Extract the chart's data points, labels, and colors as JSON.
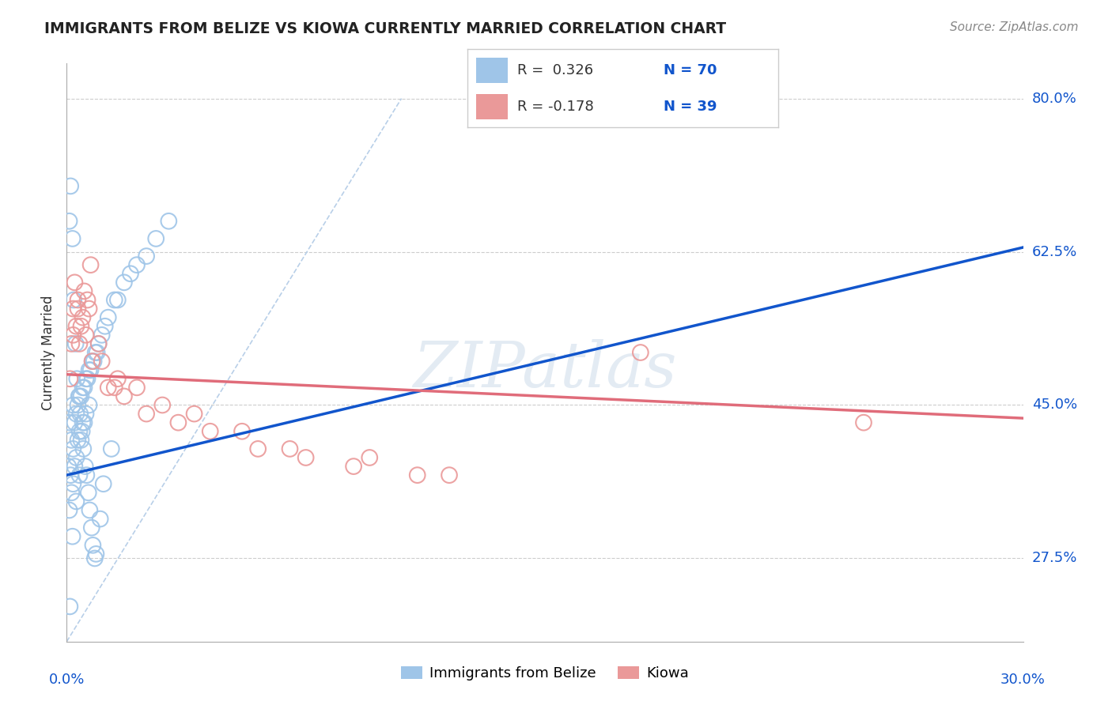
{
  "title": "IMMIGRANTS FROM BELIZE VS KIOWA CURRENTLY MARRIED CORRELATION CHART",
  "source_text": "Source: ZipAtlas.com",
  "ylabel": "Currently Married",
  "yticks": [
    27.5,
    45.0,
    62.5,
    80.0
  ],
  "ytick_labels": [
    "27.5%",
    "45.0%",
    "62.5%",
    "80.0%"
  ],
  "xmin": 0.0,
  "xmax": 30.0,
  "ymin": 18.0,
  "ymax": 84.0,
  "blue_color": "#9fc5e8",
  "pink_color": "#ea9999",
  "blue_line_color": "#1155cc",
  "pink_line_color": "#e06c7a",
  "ref_line_color": "#b8cfe8",
  "watermark_color": "#c8d8e8",
  "watermark_text": "ZIPatlas",
  "label_blue": "Immigrants from Belize",
  "label_pink": "Kiowa",
  "blue_x": [
    0.05,
    0.08,
    0.1,
    0.1,
    0.12,
    0.15,
    0.15,
    0.18,
    0.2,
    0.2,
    0.2,
    0.25,
    0.25,
    0.3,
    0.3,
    0.3,
    0.35,
    0.35,
    0.4,
    0.4,
    0.4,
    0.45,
    0.45,
    0.5,
    0.5,
    0.55,
    0.55,
    0.6,
    0.6,
    0.65,
    0.7,
    0.7,
    0.75,
    0.8,
    0.85,
    0.9,
    0.95,
    1.0,
    1.1,
    1.2,
    1.3,
    1.5,
    1.6,
    1.8,
    2.0,
    2.2,
    2.5,
    2.8,
    3.2,
    0.08,
    0.12,
    0.18,
    0.22,
    0.28,
    0.32,
    0.38,
    0.42,
    0.48,
    0.52,
    0.58,
    0.62,
    0.68,
    0.72,
    0.78,
    0.82,
    0.88,
    0.92,
    1.05,
    1.15,
    1.4
  ],
  "blue_y": [
    38.0,
    33.0,
    22.0,
    43.0,
    37.0,
    35.0,
    41.0,
    30.0,
    45.0,
    40.0,
    36.0,
    43.0,
    38.0,
    44.0,
    39.0,
    34.0,
    45.0,
    41.0,
    46.0,
    42.0,
    37.0,
    46.0,
    41.0,
    47.0,
    43.0,
    47.0,
    43.0,
    48.0,
    44.0,
    48.0,
    49.0,
    45.0,
    49.0,
    50.0,
    50.0,
    51.0,
    51.0,
    52.0,
    53.0,
    54.0,
    55.0,
    57.0,
    57.0,
    59.0,
    60.0,
    61.0,
    62.0,
    64.0,
    66.0,
    66.0,
    70.0,
    64.0,
    57.0,
    52.0,
    48.0,
    46.0,
    44.0,
    42.0,
    40.0,
    38.0,
    37.0,
    35.0,
    33.0,
    31.0,
    29.0,
    27.5,
    28.0,
    32.0,
    36.0,
    40.0
  ],
  "pink_x": [
    0.1,
    0.15,
    0.2,
    0.25,
    0.3,
    0.35,
    0.4,
    0.5,
    0.6,
    0.7,
    0.8,
    1.0,
    1.3,
    1.8,
    2.5,
    3.5,
    4.5,
    6.0,
    7.5,
    9.0,
    11.0,
    0.2,
    0.35,
    0.55,
    0.75,
    1.1,
    1.6,
    2.2,
    3.0,
    4.0,
    5.5,
    7.0,
    9.5,
    12.0,
    18.0,
    0.45,
    0.65,
    1.5,
    25.0
  ],
  "pink_y": [
    48.0,
    52.0,
    56.0,
    59.0,
    54.0,
    57.0,
    52.0,
    55.0,
    53.0,
    56.0,
    50.0,
    52.0,
    47.0,
    46.0,
    44.0,
    43.0,
    42.0,
    40.0,
    39.0,
    38.0,
    37.0,
    53.0,
    56.0,
    58.0,
    61.0,
    50.0,
    48.0,
    47.0,
    45.0,
    44.0,
    42.0,
    40.0,
    39.0,
    37.0,
    51.0,
    54.0,
    57.0,
    47.0,
    43.0
  ],
  "blue_trend_x": [
    0.0,
    30.0
  ],
  "blue_trend_y": [
    37.0,
    63.0
  ],
  "pink_trend_x": [
    0.0,
    30.0
  ],
  "pink_trend_y": [
    48.5,
    43.5
  ],
  "ref_line_x": [
    0.0,
    10.5
  ],
  "ref_line_y": [
    18.0,
    80.0
  ]
}
